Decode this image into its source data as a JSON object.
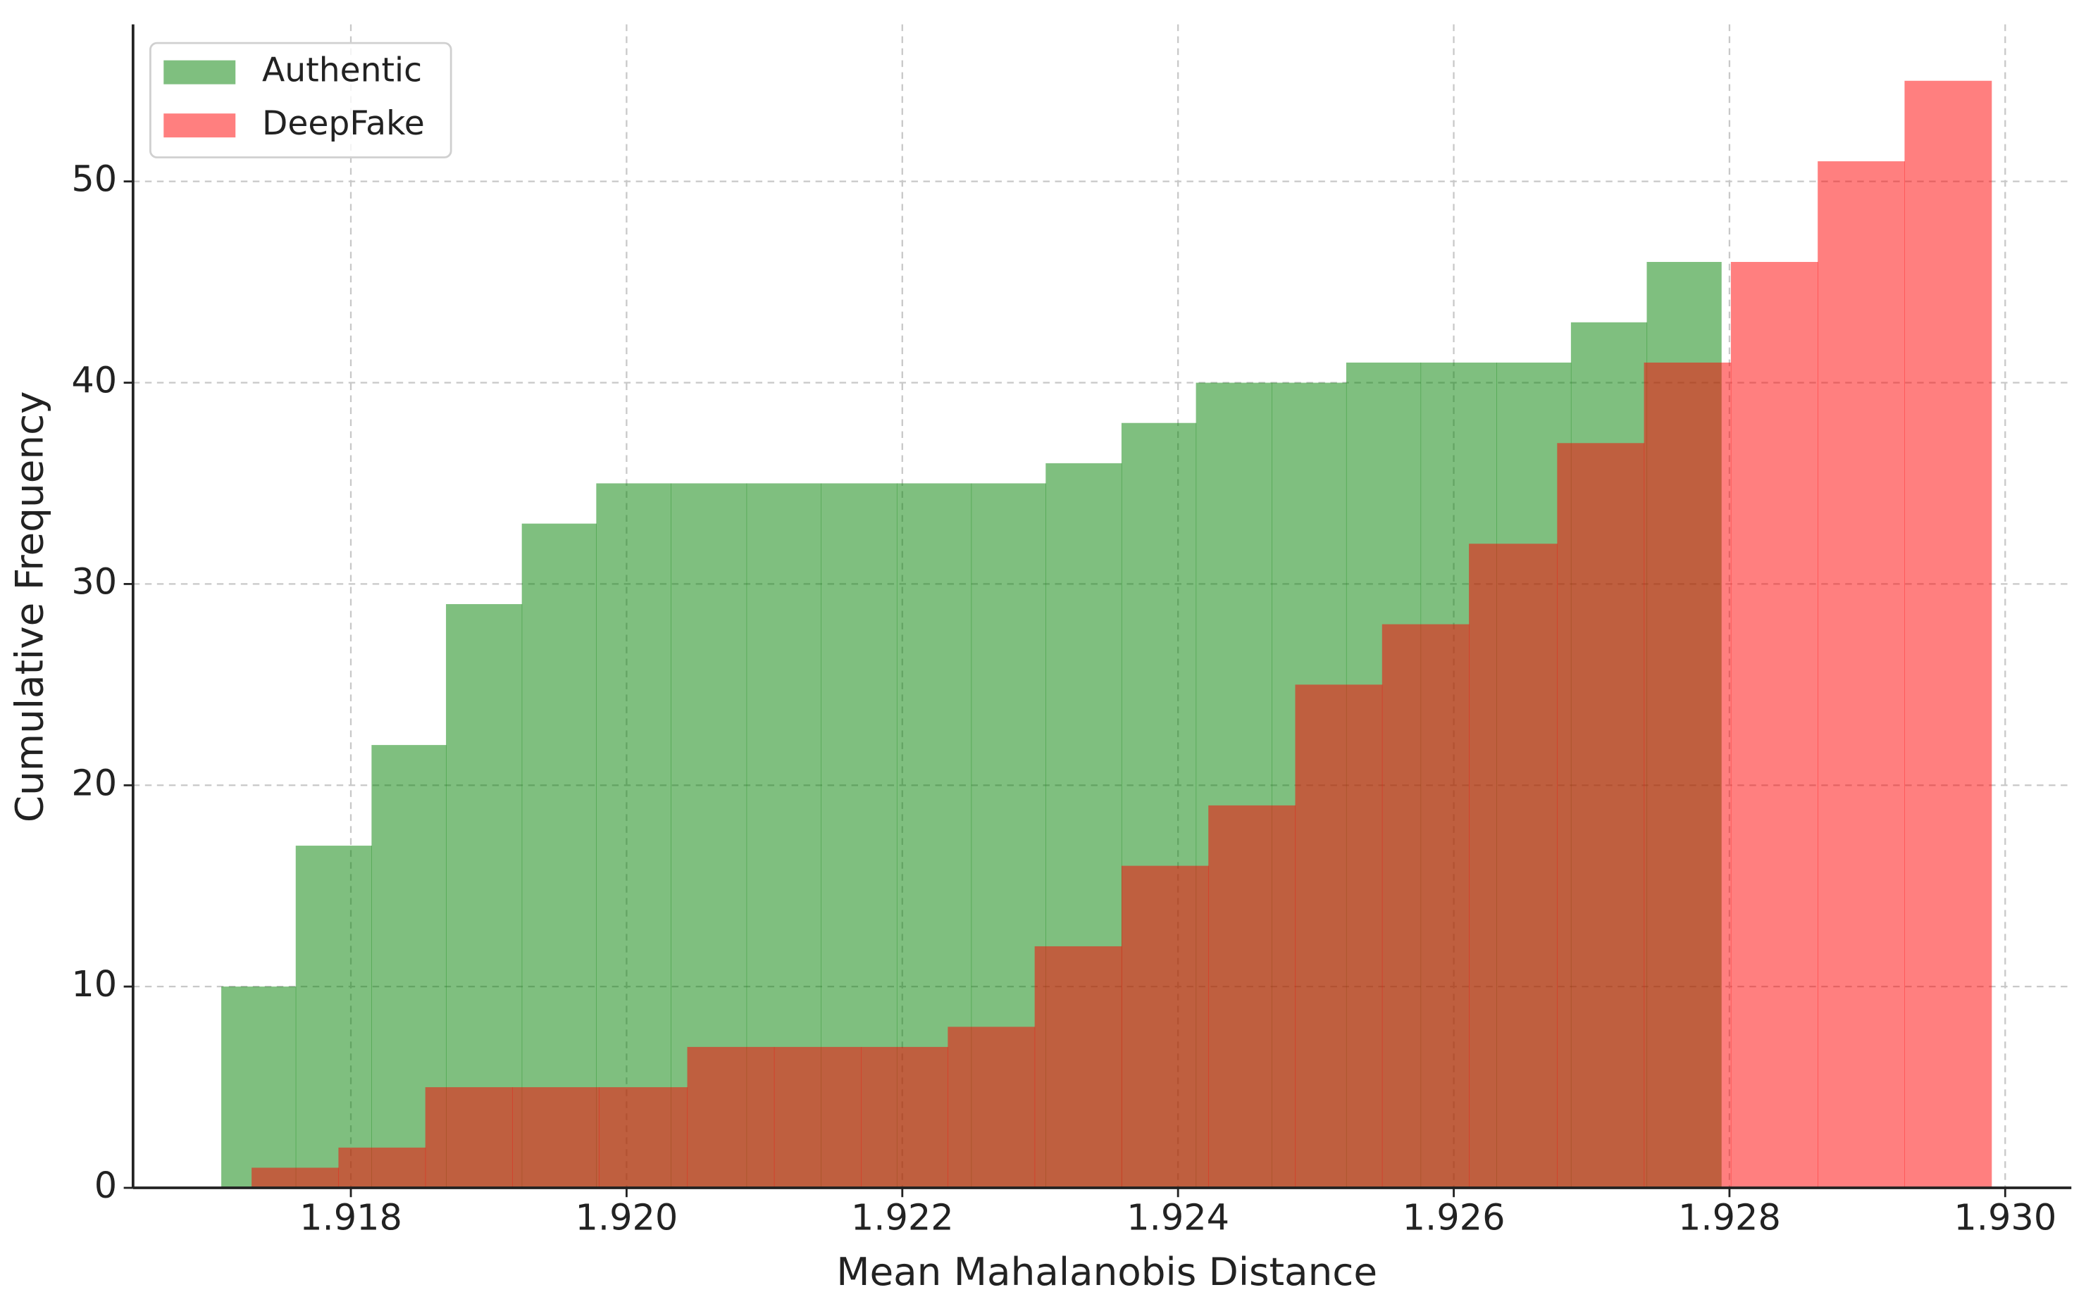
{
  "chart_data": {
    "type": "histogram",
    "xlabel": "Mean Mahalanobis Distance",
    "ylabel": "Cumulative Frequency",
    "xlim": [
      1.91642,
      1.93048
    ],
    "ylim": [
      0,
      57.8
    ],
    "xticks": [
      1.918,
      {
        "value": 1.92,
        "label": "1.920"
      },
      1.922,
      1.924,
      1.926,
      1.928,
      {
        "value": 1.93,
        "label": "1.930"
      }
    ],
    "yticks": [
      0,
      10,
      20,
      30,
      40,
      50
    ],
    "grid": true,
    "legend": "upper left",
    "alpha": 0.5,
    "series": [
      {
        "name": "Authentic",
        "color": "#008000",
        "bins": [
          1.91706,
          1.9176,
          1.91815,
          1.91869,
          1.91924,
          1.91978,
          1.92032,
          1.92087,
          1.92141,
          1.92196,
          1.9225,
          1.92304,
          1.92359,
          1.92413,
          1.92468,
          1.92522,
          1.92576,
          1.92631,
          1.92685,
          1.9274,
          1.92794
        ],
        "values": [
          10,
          17,
          22,
          29,
          33,
          35,
          35,
          35,
          35,
          35,
          35,
          36,
          38,
          40,
          40,
          41,
          41,
          41,
          43,
          46
        ]
      },
      {
        "name": "DeepFake",
        "color": "#ff0000",
        "bins": [
          1.91728,
          1.91791,
          1.91854,
          1.91917,
          1.9198,
          1.92044,
          1.92107,
          1.9217,
          1.92233,
          1.92296,
          1.92359,
          1.92422,
          1.92485,
          1.92548,
          1.92611,
          1.92675,
          1.92738,
          1.92801,
          1.92864,
          1.92927,
          1.9299
        ],
        "values": [
          1,
          2,
          5,
          5,
          5,
          7,
          7,
          7,
          8,
          12,
          16,
          19,
          25,
          28,
          32,
          37,
          41,
          46,
          51,
          55
        ]
      }
    ]
  }
}
